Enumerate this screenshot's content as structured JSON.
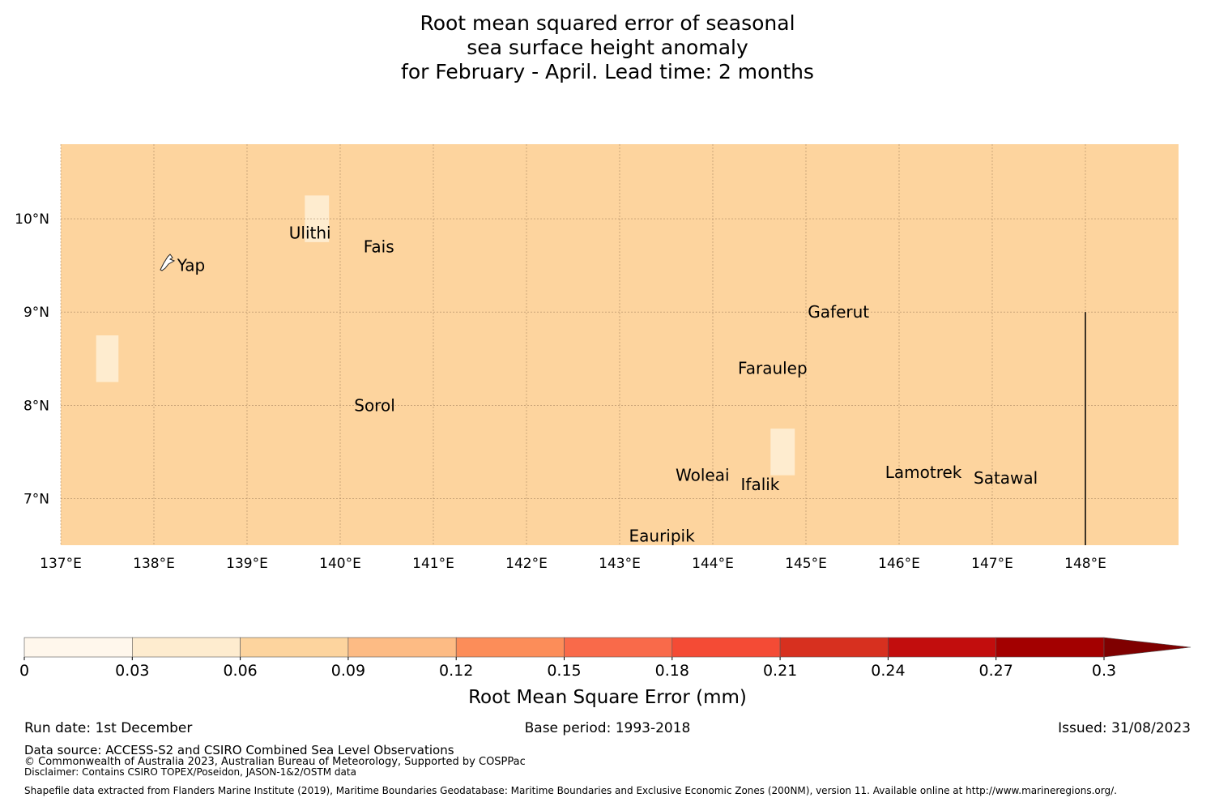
{
  "title": {
    "line1": "Root mean squared error of seasonal",
    "line2": "sea surface height anomaly",
    "line3": "for February - April. Lead time: 2 months"
  },
  "map": {
    "lon_ticks": [
      "137°E",
      "138°E",
      "139°E",
      "140°E",
      "141°E",
      "142°E",
      "143°E",
      "144°E",
      "145°E",
      "146°E",
      "147°E",
      "148°E"
    ],
    "lon_values": [
      137,
      138,
      139,
      140,
      141,
      142,
      143,
      144,
      145,
      146,
      147,
      148
    ],
    "lat_ticks": [
      "10°N",
      "9°N",
      "8°N",
      "7°N"
    ],
    "lat_values": [
      10,
      9,
      8,
      7
    ],
    "lon_range": [
      137,
      149
    ],
    "lat_range": [
      6.5,
      10.8
    ],
    "background_color": "#fdd49e",
    "places": [
      {
        "name": "Ulithi",
        "lon": 139.45,
        "lat": 9.85
      },
      {
        "name": "Fais",
        "lon": 140.25,
        "lat": 9.7
      },
      {
        "name": "Yap",
        "lon": 138.25,
        "lat": 9.5
      },
      {
        "name": "Gaferut",
        "lon": 145.02,
        "lat": 9.0
      },
      {
        "name": "Faraulep",
        "lon": 144.27,
        "lat": 8.4
      },
      {
        "name": "Sorol",
        "lon": 140.15,
        "lat": 8.0
      },
      {
        "name": "Woleai",
        "lon": 143.6,
        "lat": 7.25
      },
      {
        "name": "Ifalik",
        "lon": 144.3,
        "lat": 7.15
      },
      {
        "name": "Lamotrek",
        "lon": 145.85,
        "lat": 7.28
      },
      {
        "name": "Satawal",
        "lon": 146.8,
        "lat": 7.22
      },
      {
        "name": "Eauripik",
        "lon": 143.1,
        "lat": 6.6
      }
    ],
    "cells": [
      {
        "lon0": 137.38,
        "lon1": 137.62,
        "lat0": 8.25,
        "lat1": 8.75,
        "value": 0.045
      },
      {
        "lon0": 139.62,
        "lon1": 139.88,
        "lat0": 9.75,
        "lat1": 10.25,
        "value": 0.045
      },
      {
        "lon0": 144.62,
        "lon1": 144.88,
        "lat0": 7.25,
        "lat1": 7.75,
        "value": 0.045
      },
      {
        "lon0": 140.62,
        "lon1": 141.12,
        "lat0": 8.25,
        "lat1": 8.5,
        "value": 0.075
      },
      {
        "lon0": 141.12,
        "lon1": 141.88,
        "lat0": 8.25,
        "lat1": 8.75,
        "value": 0.075
      },
      {
        "lon0": 141.88,
        "lon1": 142.38,
        "lat0": 8.5,
        "lat1": 8.75,
        "value": 0.075
      },
      {
        "lon0": 145.62,
        "lon1": 147.12,
        "lat0": 9.25,
        "lat1": 9.5,
        "value": 0.075
      },
      {
        "lon0": 145.38,
        "lon1": 147.38,
        "lat0": 8.5,
        "lat1": 9.25,
        "value": 0.075
      },
      {
        "lon0": 145.62,
        "lon1": 147.38,
        "lat0": 8.25,
        "lat1": 8.5,
        "value": 0.075
      },
      {
        "lon0": 145.88,
        "lon1": 147.12,
        "lat0": 8.0,
        "lat1": 8.25,
        "value": 0.075
      },
      {
        "lon0": 146.12,
        "lon1": 147.12,
        "lat0": 7.75,
        "lat1": 8.0,
        "value": 0.075
      }
    ],
    "boundary_line": {
      "lon": 148.0,
      "lat0": 6.5,
      "lat1": 9.0
    }
  },
  "colorbar": {
    "ticks": [
      "0",
      "0.03",
      "0.06",
      "0.09",
      "0.12",
      "0.15",
      "0.18",
      "0.21",
      "0.24",
      "0.27",
      "0.3"
    ],
    "bounds": [
      0,
      0.03,
      0.06,
      0.09,
      0.12,
      0.15,
      0.18,
      0.21,
      0.24,
      0.27,
      0.3
    ],
    "colors": [
      "#fff7ec",
      "#feeccf",
      "#fdd49e",
      "#fdbb84",
      "#fc8d59",
      "#f96a4a",
      "#f44b35",
      "#d7301f",
      "#c20d0d",
      "#a30000",
      "#7f0000"
    ],
    "label": "Root Mean Square Error (mm)"
  },
  "footer": {
    "run_date": "Run date: 1st December",
    "base_period": "Base period: 1993-2018",
    "issued": "Issued: 31/08/2023",
    "data_source": "Data source: ACCESS-S2 and CSIRO Combined Sea Level Observations",
    "copyright": "© Commonwealth of Australia 2023, Australian Bureau of Meteorology, Supported by COSPPac",
    "disclaimer": "Disclaimer: Contains CSIRO TOPEX/Poseidon, JASON-1&2/OSTM data",
    "shapefile": "Shapefile data extracted from Flanders Marine Institute (2019), Maritime Boundaries Geodatabase: Maritime Boundaries and Exclusive Economic Zones (200NM), version 11. Available online at http://www.marineregions.org/."
  }
}
